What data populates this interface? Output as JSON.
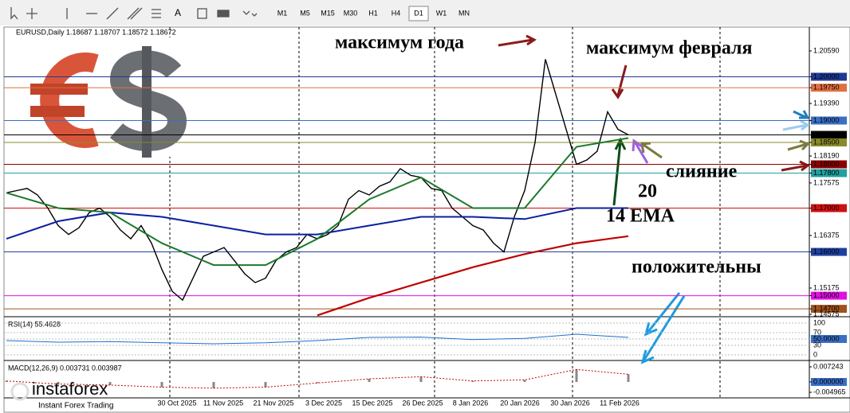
{
  "toolbar": {
    "timeframes": [
      "M1",
      "M5",
      "M15",
      "M30",
      "H1",
      "H4",
      "D1",
      "W1",
      "MN"
    ],
    "active": "D1"
  },
  "chart": {
    "header": "EURUSD,Daily  1.18687 1.18707 1.18572 1.18672",
    "ylim": [
      1.1452,
      1.21135
    ],
    "price_labels": [
      {
        "value": 1.2059,
        "label": "1.20590"
      },
      {
        "value": 1.2,
        "label": "1.20000",
        "box": "#1f3a93"
      },
      {
        "value": 1.1975,
        "label": "1.19750",
        "box": "#e07040"
      },
      {
        "value": 1.1939,
        "label": "1.19390"
      },
      {
        "value": 1.19,
        "label": "1.19000",
        "box": "#3a6fc4"
      },
      {
        "value": 1.18672,
        "label": "1.18672",
        "box": "#000000"
      },
      {
        "value": 1.185,
        "label": "1.18500",
        "box": "#8a8a2a"
      },
      {
        "value": 1.1819,
        "label": "1.18190"
      },
      {
        "value": 1.18,
        "label": "1.18000",
        "box": "#8b0000"
      },
      {
        "value": 1.178,
        "label": "1.17800",
        "box": "#20a0a0"
      },
      {
        "value": 1.17575,
        "label": "1.17575"
      },
      {
        "value": 1.17,
        "label": "1.17000",
        "box": "#d01010"
      },
      {
        "value": 1.16375,
        "label": "1.16375"
      },
      {
        "value": 1.16,
        "label": "1.16000",
        "box": "#2040a0"
      },
      {
        "value": 1.15175,
        "label": "1.15175"
      },
      {
        "value": 1.15,
        "label": "1.15000",
        "box": "#e010e0"
      },
      {
        "value": 1.147,
        "label": "1.14700",
        "box": "#a0521d"
      },
      {
        "value": 1.14575,
        "label": "1.14575"
      }
    ],
    "x_labels": [
      "30 Oct 2025",
      "11 Nov 2025",
      "21 Nov 2025",
      "3 Dec 2025",
      "15 Dec 2025",
      "26 Dec 2025",
      "8 Jan 2026",
      "20 Jan 2026",
      "30 Jan 2026",
      "11 Feb 2026"
    ],
    "close": [
      1.1735,
      1.174,
      1.1745,
      1.173,
      1.17,
      1.166,
      1.164,
      1.1655,
      1.169,
      1.17,
      1.168,
      1.165,
      1.163,
      1.166,
      1.162,
      1.156,
      1.151,
      1.149,
      1.154,
      1.159,
      1.16,
      1.161,
      1.158,
      1.155,
      1.153,
      1.154,
      1.158,
      1.16,
      1.161,
      1.164,
      1.163,
      1.164,
      1.166,
      1.172,
      1.174,
      1.173,
      1.175,
      1.176,
      1.179,
      1.1775,
      1.177,
      1.1745,
      1.174,
      1.17,
      1.168,
      1.166,
      1.165,
      1.162,
      1.16,
      1.168,
      1.174,
      1.185,
      1.204,
      1.196,
      1.188,
      1.18,
      1.181,
      1.183,
      1.192,
      1.188,
      1.18672
    ],
    "ema14": [
      1.1735,
      1.17,
      1.169,
      1.162,
      1.157,
      1.157,
      1.163,
      1.172,
      1.177,
      1.17,
      1.17,
      1.184,
      1.186
    ],
    "ma50": [
      1.163,
      1.167,
      1.169,
      1.168,
      1.166,
      1.164,
      1.164,
      1.166,
      1.168,
      1.168,
      1.1675,
      1.17,
      1.17
    ],
    "ma200": [
      null,
      null,
      null,
      null,
      null,
      null,
      1.1455,
      1.1495,
      1.153,
      1.1565,
      1.1595,
      1.162,
      1.1636
    ],
    "annotations": [
      {
        "text": "максимум года",
        "color": "#8b1a1a"
      },
      {
        "text": "максимум февраля",
        "color": "#8b1a1a"
      },
      {
        "text": "слияние",
        "color": "#7a7a40"
      },
      {
        "text": "20",
        "color": "#8a3fd0"
      },
      {
        "text": "14 EMA",
        "color": "#0d4d1d"
      },
      {
        "text": "положительны",
        "color": "#1e9be0"
      }
    ]
  },
  "rsi": {
    "header": "RSI(14) 55.4628",
    "ylim": [
      0,
      100
    ],
    "ticks": [
      100,
      70,
      {
        "value": 50,
        "label": "50.0000"
      },
      30,
      0
    ],
    "values": [
      45,
      40,
      42,
      38,
      35,
      38,
      45,
      55,
      56,
      48,
      52,
      65,
      55
    ]
  },
  "macd": {
    "header": "MACD(12,26,9) 0.003731 0.003987",
    "ylim": [
      -0.004965,
      0.007243
    ],
    "ticks": [
      0.007243,
      {
        "value": 0,
        "label": "0.000000"
      },
      -0.004965
    ],
    "values": [
      0.0005,
      -0.001,
      -0.0015,
      -0.0025,
      -0.003,
      -0.0025,
      -0.0005,
      0.0015,
      0.0025,
      0.0005,
      0.001,
      0.006,
      0.0037
    ]
  },
  "logo": {
    "name": "instaforex",
    "tagline": "Instant Forex Trading"
  }
}
